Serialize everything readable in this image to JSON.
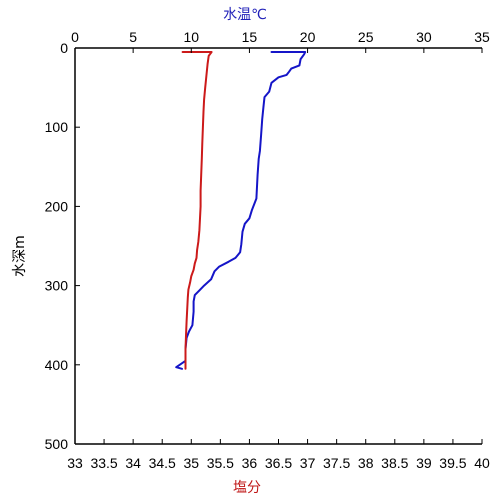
{
  "chart_data": {
    "type": "line",
    "title": "",
    "top_axis": {
      "label": "水温℃",
      "color": "#1f1fb8",
      "xlim": [
        0,
        35
      ],
      "ticks": [
        0,
        5,
        10,
        15,
        20,
        25,
        30,
        35
      ]
    },
    "bottom_axis": {
      "label": "塩分",
      "color": "#c01818",
      "xlim": [
        33,
        40
      ],
      "ticks": [
        "33",
        "33.5",
        "34",
        "34.5",
        "35",
        "35.5",
        "36",
        "36.5",
        "37",
        "37.5",
        "38",
        "38.5",
        "39",
        "39.5",
        "40"
      ]
    },
    "y_axis": {
      "label": "水深m",
      "ylim": [
        0,
        500
      ],
      "inverted": true,
      "ticks": [
        0,
        100,
        200,
        300,
        400,
        500
      ]
    },
    "grid": false,
    "series": [
      {
        "axis": "top",
        "color": "#1515c8",
        "points": [
          [
            16.9,
            5
          ],
          [
            19.8,
            5
          ],
          [
            19.7,
            8
          ],
          [
            19.4,
            14
          ],
          [
            19.3,
            22
          ],
          [
            18.6,
            26
          ],
          [
            18.4,
            30
          ],
          [
            18.2,
            34
          ],
          [
            17.5,
            37
          ],
          [
            16.9,
            44
          ],
          [
            16.7,
            55
          ],
          [
            16.3,
            62
          ],
          [
            16.2,
            75
          ],
          [
            16.1,
            90
          ],
          [
            16.0,
            110
          ],
          [
            15.9,
            130
          ],
          [
            15.8,
            140
          ],
          [
            15.7,
            160
          ],
          [
            15.6,
            190
          ],
          [
            15.2,
            205
          ],
          [
            15.0,
            215
          ],
          [
            14.6,
            222
          ],
          [
            14.4,
            232
          ],
          [
            14.3,
            248
          ],
          [
            14.2,
            258
          ],
          [
            13.8,
            265
          ],
          [
            13.2,
            270
          ],
          [
            12.4,
            276
          ],
          [
            12.0,
            282
          ],
          [
            11.7,
            292
          ],
          [
            11.1,
            300
          ],
          [
            10.7,
            306
          ],
          [
            10.3,
            312
          ],
          [
            10.2,
            320
          ],
          [
            10.2,
            333
          ],
          [
            10.1,
            350
          ],
          [
            9.8,
            358
          ],
          [
            9.6,
            366
          ],
          [
            9.5,
            380
          ],
          [
            9.5,
            395
          ],
          [
            9.0,
            400
          ],
          [
            8.7,
            403
          ],
          [
            9.2,
            405
          ]
        ]
      },
      {
        "axis": "bottom",
        "color": "#cc1a1a",
        "points": [
          [
            34.85,
            5
          ],
          [
            35.35,
            5
          ],
          [
            35.3,
            10
          ],
          [
            35.28,
            20
          ],
          [
            35.26,
            35
          ],
          [
            35.24,
            50
          ],
          [
            35.22,
            65
          ],
          [
            35.21,
            80
          ],
          [
            35.2,
            100
          ],
          [
            35.19,
            120
          ],
          [
            35.18,
            140
          ],
          [
            35.17,
            160
          ],
          [
            35.16,
            180
          ],
          [
            35.16,
            200
          ],
          [
            35.15,
            215
          ],
          [
            35.14,
            230
          ],
          [
            35.12,
            245
          ],
          [
            35.1,
            255
          ],
          [
            35.09,
            265
          ],
          [
            35.06,
            272
          ],
          [
            35.04,
            280
          ],
          [
            35.0,
            288
          ],
          [
            34.98,
            296
          ],
          [
            34.95,
            305
          ],
          [
            34.94,
            315
          ],
          [
            34.93,
            330
          ],
          [
            34.92,
            345
          ],
          [
            34.91,
            360
          ],
          [
            34.9,
            380
          ],
          [
            34.9,
            400
          ],
          [
            34.9,
            405
          ]
        ]
      }
    ]
  }
}
